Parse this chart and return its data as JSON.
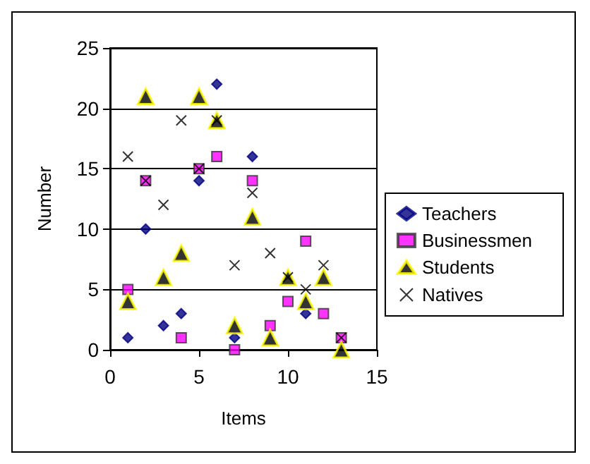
{
  "chart_data": {
    "type": "scatter",
    "xlabel": "Items",
    "ylabel": "Number",
    "x": [
      1,
      2,
      3,
      4,
      5,
      6,
      7,
      8,
      9,
      10,
      11,
      12,
      13
    ],
    "xlim": [
      0,
      15
    ],
    "xticks": [
      0,
      5,
      10,
      15
    ],
    "ylim": [
      0,
      25
    ],
    "yticks": [
      0,
      5,
      10,
      15,
      20,
      25
    ],
    "grid": "y",
    "legend": "right",
    "series": [
      {
        "name": "Teachers",
        "color": "#000080",
        "marker": "diamond",
        "values": [
          1,
          10,
          2,
          3,
          14,
          22,
          1,
          16,
          null,
          null,
          3,
          null,
          null
        ]
      },
      {
        "name": "Businessmen",
        "color": "#ff00ff",
        "marker": "square",
        "values": [
          5,
          14,
          null,
          1,
          15,
          16,
          0,
          14,
          2,
          4,
          9,
          3,
          1
        ]
      },
      {
        "name": "Students",
        "color": "#000000",
        "marker": "triangle",
        "values": [
          4,
          21,
          6,
          8,
          21,
          19,
          2,
          11,
          1,
          6,
          4,
          6,
          0
        ]
      },
      {
        "name": "Natives",
        "color": "#000000",
        "marker": "cross",
        "values": [
          16,
          14,
          12,
          19,
          15,
          19,
          7,
          13,
          8,
          6,
          5,
          7,
          1
        ]
      }
    ]
  }
}
